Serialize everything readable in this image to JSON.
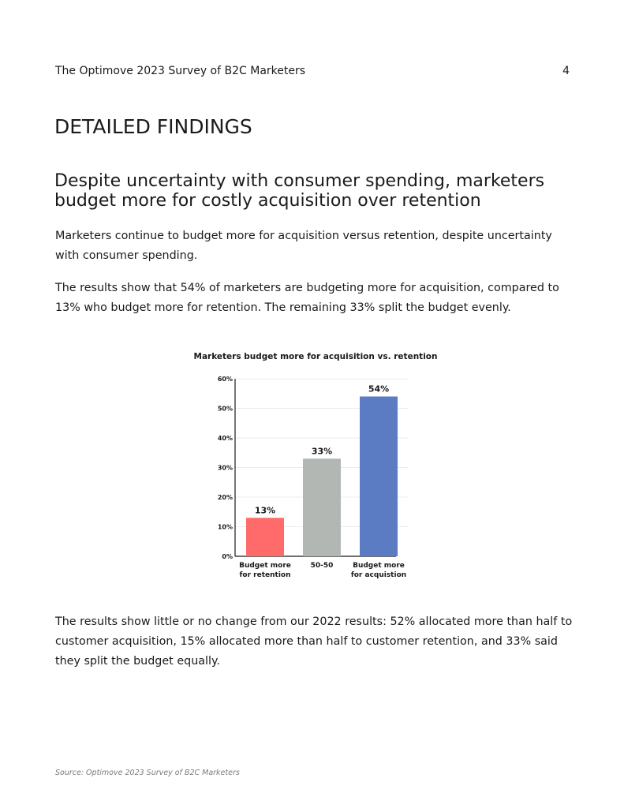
{
  "header": {
    "report_title": "The Optimove 2023 Survey of B2C Marketers",
    "page_number": "4"
  },
  "section_title": "DETAILED FINDINGS",
  "subheading": "Despite uncertainty with consumer spending, marketers budget more for costly acquisition over retention",
  "paragraphs": [
    "Marketers continue to budget more for acquisition versus retention, despite uncertainty with consumer spending.",
    "The results show that 54% of marketers are budgeting more for acquisition, compared to 13% who budget more for retention. The remaining 33% split the budget evenly.",
    "The results show little or no change from our 2022 results: 52% allocated more than half to customer acquisition, 15% allocated more than half to customer retention, and 33% said they split the budget equally."
  ],
  "chart_data": {
    "type": "bar",
    "title": "Marketers budget more for acquisition vs. retention",
    "categories": [
      [
        "Budget more",
        "for retention"
      ],
      [
        "50-50"
      ],
      [
        "Budget more",
        "for acquistion"
      ]
    ],
    "values": [
      13,
      33,
      54
    ],
    "data_labels": [
      "13%",
      "33%",
      "54%"
    ],
    "colors": [
      "#ff6b6b",
      "#b3b7b4",
      "#5b7bc2"
    ],
    "ylim": [
      0,
      60
    ],
    "yticks": [
      0,
      10,
      20,
      30,
      40,
      50,
      60
    ],
    "ytick_labels": [
      "0%",
      "10%",
      "20%",
      "30%",
      "40%",
      "50%",
      "60%"
    ],
    "grid": true
  },
  "footer": {
    "source": "Source: Optimove 2023 Survey of B2C Marketers"
  }
}
